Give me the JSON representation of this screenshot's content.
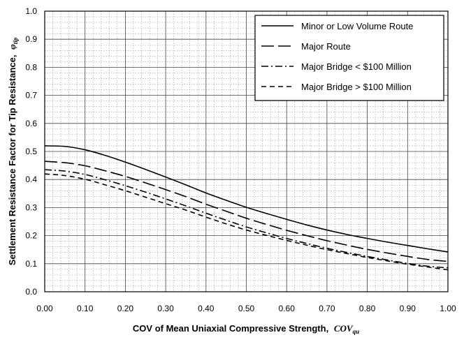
{
  "chart_data": {
    "type": "line",
    "xlabel": "COV of Mean Uniaxial Compressive Strength,",
    "xlabel_symbol": "COV",
    "xlabel_sub": "qu",
    "ylabel": "Settlement Resistance Factor for Tip Resistance,",
    "ylabel_symbol": "φ",
    "ylabel_sub": "tip",
    "xlim": [
      0.0,
      1.0
    ],
    "ylim": [
      0.0,
      1.0
    ],
    "xticks": [
      "0.00",
      "0.10",
      "0.20",
      "0.30",
      "0.40",
      "0.50",
      "0.60",
      "0.70",
      "0.80",
      "0.90",
      "1.00"
    ],
    "yticks": [
      "0.0",
      "0.1",
      "0.2",
      "0.3",
      "0.4",
      "0.5",
      "0.6",
      "0.7",
      "0.8",
      "0.9",
      "1.0"
    ],
    "grid": true,
    "legend_position": "top-right",
    "x": [
      0.0,
      0.05,
      0.1,
      0.15,
      0.2,
      0.25,
      0.3,
      0.35,
      0.4,
      0.45,
      0.5,
      0.55,
      0.6,
      0.65,
      0.7,
      0.75,
      0.8,
      0.85,
      0.9,
      0.95,
      1.0
    ],
    "series": [
      {
        "name": "Minor or Low Volume Route",
        "style": "solid",
        "values": [
          0.52,
          0.518,
          0.506,
          0.486,
          0.462,
          0.436,
          0.409,
          0.381,
          0.352,
          0.326,
          0.301,
          0.279,
          0.258,
          0.238,
          0.22,
          0.204,
          0.19,
          0.177,
          0.165,
          0.153,
          0.142
        ]
      },
      {
        "name": "Major Route",
        "style": "long-dash",
        "values": [
          0.465,
          0.46,
          0.449,
          0.431,
          0.411,
          0.388,
          0.364,
          0.339,
          0.312,
          0.287,
          0.262,
          0.24,
          0.219,
          0.2,
          0.182,
          0.166,
          0.151,
          0.138,
          0.126,
          0.115,
          0.108
        ]
      },
      {
        "name": "Major Bridge < $100 Million",
        "style": "dash-dot",
        "values": [
          0.435,
          0.43,
          0.418,
          0.399,
          0.378,
          0.355,
          0.331,
          0.306,
          0.28,
          0.255,
          0.231,
          0.21,
          0.19,
          0.172,
          0.155,
          0.14,
          0.126,
          0.113,
          0.101,
          0.091,
          0.085
        ]
      },
      {
        "name": "Major Bridge > $100 Million",
        "style": "short-dash",
        "values": [
          0.42,
          0.414,
          0.401,
          0.381,
          0.36,
          0.337,
          0.314,
          0.291,
          0.266,
          0.242,
          0.22,
          0.201,
          0.183,
          0.166,
          0.15,
          0.136,
          0.122,
          0.11,
          0.098,
          0.088,
          0.078
        ]
      }
    ]
  }
}
